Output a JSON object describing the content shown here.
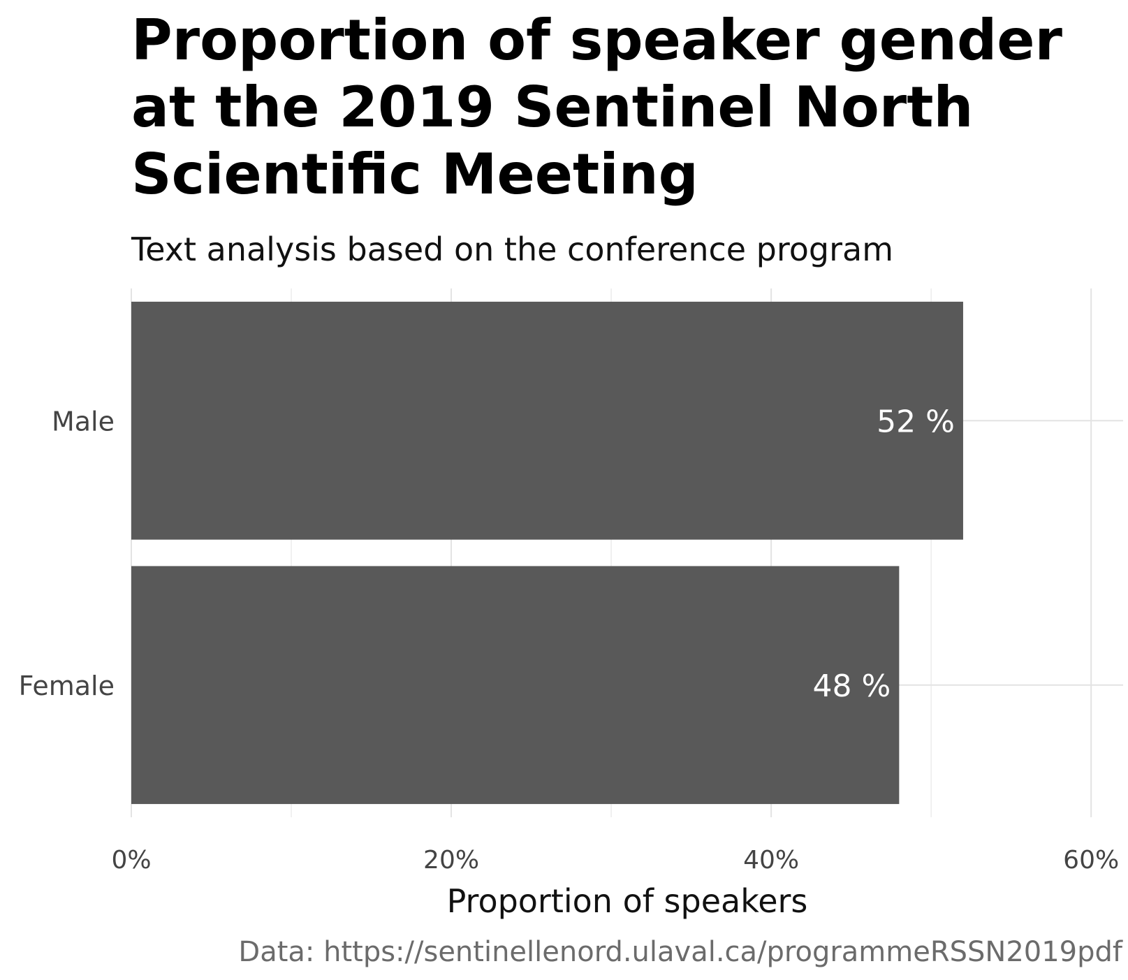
{
  "chart_data": {
    "type": "bar",
    "orientation": "horizontal",
    "title": "Proportion of speaker gender at the 2019 Sentinel North Scientific Meeting",
    "subtitle": "Text analysis based on the conference program",
    "caption": "Data: https://sentinellenord.ulaval.ca/programmeRSSN2019pdf",
    "xlabel": "Proportion of speakers",
    "ylabel": "",
    "xlim": [
      0,
      0.62
    ],
    "x_ticks": [
      0,
      0.2,
      0.4,
      0.6
    ],
    "x_tick_labels": [
      "0%",
      "20%",
      "40%",
      "60%"
    ],
    "categories": [
      "Male",
      "Female"
    ],
    "values": [
      0.52,
      0.48
    ],
    "data_labels": [
      "52 %",
      "48 %"
    ],
    "bar_color": "#595959",
    "grid": true,
    "legend": "none"
  }
}
